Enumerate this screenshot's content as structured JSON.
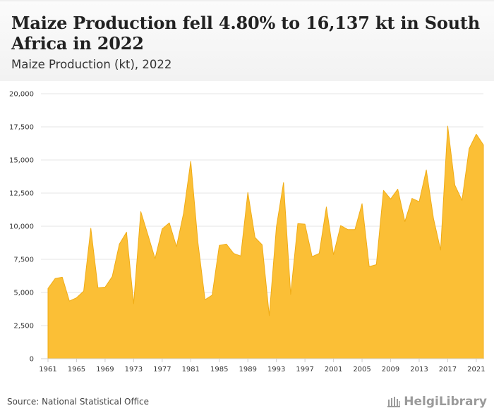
{
  "header": {
    "title": "Maize Production fell 4.80% to 16,137 kt in South Africa in 2022",
    "subtitle": "Maize Production (kt), 2022"
  },
  "footer": {
    "source": "Source: National Statistical Office",
    "brand": "HelgiLibrary",
    "brand_icon": "library-building-icon"
  },
  "colors": {
    "fill": "#fbbf36",
    "stroke": "#f0ac16",
    "grid": "#e6e6e6"
  },
  "chart_data": {
    "type": "area",
    "x": [
      1961,
      1962,
      1963,
      1964,
      1965,
      1966,
      1967,
      1968,
      1969,
      1970,
      1971,
      1972,
      1973,
      1974,
      1975,
      1976,
      1977,
      1978,
      1979,
      1980,
      1981,
      1982,
      1983,
      1984,
      1985,
      1986,
      1987,
      1988,
      1989,
      1990,
      1991,
      1992,
      1993,
      1994,
      1995,
      1996,
      1997,
      1998,
      1999,
      2000,
      2001,
      2002,
      2003,
      2004,
      2005,
      2006,
      2007,
      2008,
      2009,
      2010,
      2011,
      2012,
      2013,
      2014,
      2015,
      2016,
      2017,
      2018,
      2019,
      2020,
      2021,
      2022
    ],
    "values": [
      5300,
      6050,
      6150,
      4350,
      4600,
      5100,
      9850,
      5350,
      5400,
      6200,
      8650,
      9550,
      4150,
      11100,
      9350,
      7550,
      9800,
      10250,
      8450,
      11000,
      14900,
      8800,
      4450,
      4800,
      8550,
      8650,
      7950,
      7750,
      12550,
      9150,
      8600,
      3250,
      9950,
      13300,
      4850,
      10200,
      10150,
      7700,
      7950,
      11450,
      7850,
      10050,
      9750,
      9750,
      11700,
      6950,
      7100,
      12700,
      12050,
      12800,
      10350,
      12100,
      11850,
      14250,
      10600,
      8200,
      17550,
      13100,
      11950,
      15850,
      16950,
      16137
    ],
    "xlabel": "",
    "ylabel": "",
    "ylim": [
      0,
      20000
    ],
    "y_ticks": [
      "0",
      "2,500",
      "5,000",
      "7,500",
      "10,000",
      "12,500",
      "15,000",
      "17,500",
      "20,000"
    ],
    "x_ticks": [
      "1961",
      "1965",
      "1969",
      "1973",
      "1977",
      "1981",
      "1985",
      "1989",
      "1993",
      "1997",
      "2001",
      "2005",
      "2009",
      "2013",
      "2017",
      "2021"
    ],
    "grid": true,
    "legend": "none"
  }
}
